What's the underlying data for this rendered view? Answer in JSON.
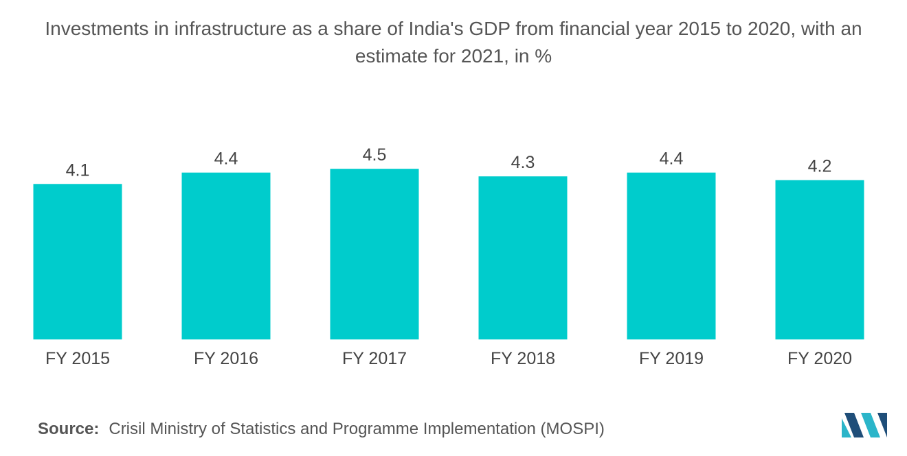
{
  "title": "Investments in infrastructure as a share of India's GDP from financial year 2015 to 2020, with an estimate for 2021, in %",
  "source": {
    "label": "Source:",
    "text": "Crisil Ministry of Statistics and Programme Implementation (MOSPI)"
  },
  "colors": {
    "bar": "#00CCCC",
    "logo_dark": "#1F4E79",
    "logo_light": "#2BB5C9"
  },
  "logo_icon": "mordor-intelligence-logo-icon",
  "chart_data": {
    "type": "bar",
    "title": "Investments in infrastructure as a share of India's GDP from financial year 2015 to 2020, with an estimate for 2021, in %",
    "categories": [
      "FY 2015",
      "FY 2016",
      "FY 2017",
      "FY 2018",
      "FY 2019",
      "FY 2020"
    ],
    "values": [
      4.1,
      4.4,
      4.5,
      4.3,
      4.4,
      4.2
    ],
    "data_labels": [
      "4.1",
      "4.4",
      "4.5",
      "4.3",
      "4.4",
      "4.2"
    ],
    "xlabel": "",
    "ylabel": "",
    "ylim": [
      0,
      4.5
    ],
    "grid": false,
    "legend": "none"
  }
}
